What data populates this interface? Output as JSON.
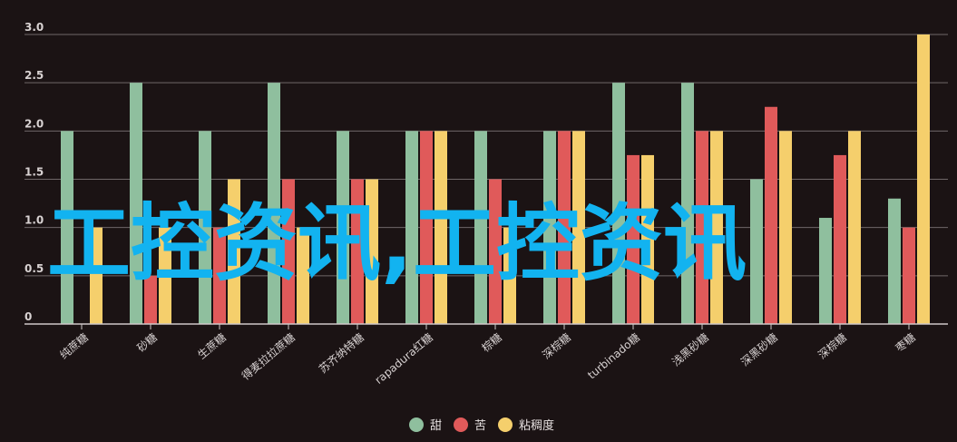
{
  "chart_data": {
    "type": "bar",
    "categories": [
      "纯蔗糖",
      "砂糖",
      "生蔗糖",
      "得麦拉拉蔗糖",
      "苏齐纳特糖",
      "rapadura红糖",
      "棕糖",
      "深棕糖",
      "turbinado糖",
      "浅黑砂糖",
      "深黑砂糖",
      "深棕糖",
      "枣糖"
    ],
    "series": [
      {
        "name": "甜",
        "color": "#8fbf9e",
        "values": [
          2.0,
          2.5,
          2.0,
          2.5,
          2.0,
          2.0,
          2.0,
          2.0,
          2.5,
          2.5,
          1.5,
          1.1,
          1.3
        ]
      },
      {
        "name": "苦",
        "color": "#e05a5a",
        "values": [
          0,
          0.5,
          1.0,
          1.5,
          1.5,
          2.0,
          1.5,
          2.0,
          1.75,
          2.0,
          2.25,
          1.75,
          1.0
        ]
      },
      {
        "name": "粘稠度",
        "color": "#f5cf6c",
        "values": [
          1.0,
          1.0,
          1.5,
          1.0,
          1.5,
          2.0,
          1.0,
          2.0,
          1.75,
          2.0,
          2.0,
          2.0,
          3.0
        ]
      }
    ],
    "yticks": [
      "0",
      "0.5",
      "1.0",
      "1.5",
      "2.0",
      "2.5",
      "3.0"
    ],
    "ylim": [
      0,
      3.0
    ],
    "grid": true,
    "legend_position": "bottom-center",
    "watermark": "工控资讯,工控资讯"
  }
}
